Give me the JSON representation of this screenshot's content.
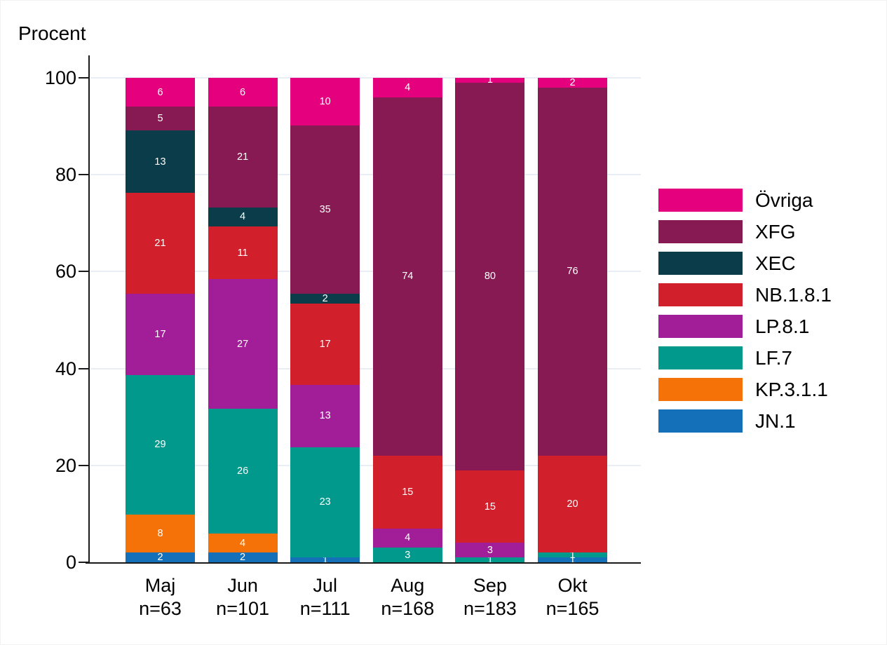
{
  "y_axis_title": "Procent",
  "chart_data": {
    "type": "bar",
    "subtype": "stacked-percentage",
    "ylabel": "Procent",
    "xlabel": "",
    "ylim": [
      0,
      100
    ],
    "y_ticks": [
      0,
      20,
      40,
      60,
      80,
      100
    ],
    "grid": "horizontal-light",
    "legend_position": "right",
    "categories": [
      "Maj",
      "Jun",
      "Jul",
      "Aug",
      "Sep",
      "Okt"
    ],
    "category_sublabels": [
      "n=63",
      "n=101",
      "n=111",
      "n=168",
      "n=183",
      "n=165"
    ],
    "stack_order_bottom_to_top": [
      "JN.1",
      "KP.3.1.1",
      "LF.7",
      "LP.8.1",
      "NB.1.8.1",
      "XEC",
      "XFG",
      "Övriga"
    ],
    "series": [
      {
        "name": "Övriga",
        "color": "#e5007e",
        "values": [
          6,
          6,
          10,
          4,
          1,
          2
        ]
      },
      {
        "name": "XFG",
        "color": "#871a52",
        "values": [
          5,
          21,
          35,
          74,
          80,
          76
        ]
      },
      {
        "name": "XEC",
        "color": "#0a3d49",
        "values": [
          13,
          4,
          2,
          0,
          0,
          0
        ]
      },
      {
        "name": "NB.1.8.1",
        "color": "#d11f2b",
        "values": [
          21,
          11,
          17,
          15,
          15,
          20
        ]
      },
      {
        "name": "LP.8.1",
        "color": "#a21e98",
        "values": [
          17,
          27,
          13,
          4,
          3,
          0
        ]
      },
      {
        "name": "LF.7",
        "color": "#00998c",
        "values": [
          29,
          26,
          23,
          3,
          1,
          1
        ]
      },
      {
        "name": "KP.3.1.1",
        "color": "#f57208",
        "values": [
          8,
          4,
          0,
          0,
          0,
          0
        ]
      },
      {
        "name": "JN.1",
        "color": "#1470b8",
        "values": [
          2,
          2,
          1,
          0,
          0,
          1
        ]
      }
    ]
  }
}
